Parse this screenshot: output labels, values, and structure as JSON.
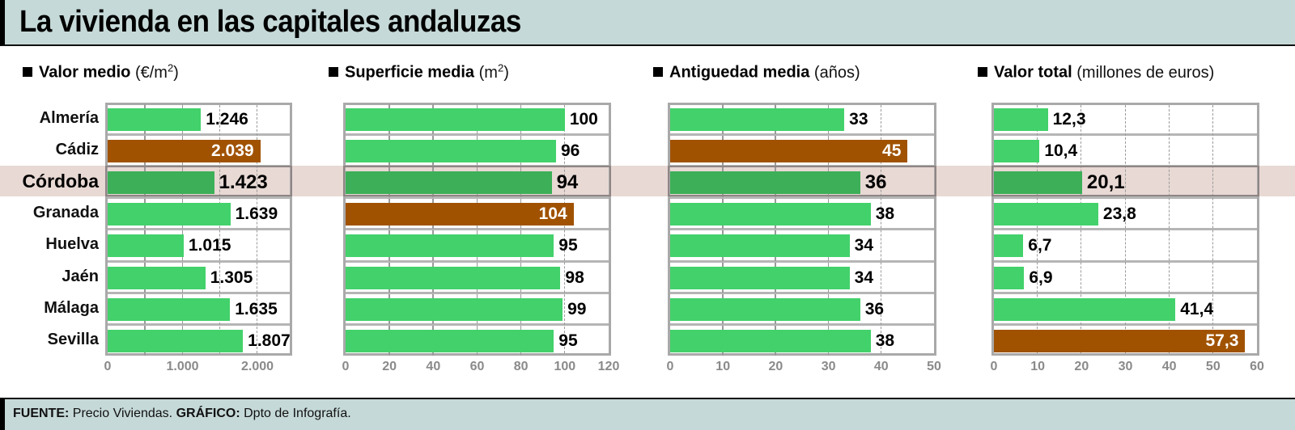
{
  "title": "La vivienda en las capitales andaluzas",
  "footer": {
    "source_label": "FUENTE:",
    "source_value": "Precio Viviendas.",
    "graphic_label": "GRÁFICO:",
    "graphic_value": "Dpto de Infografía."
  },
  "cities": [
    "Almería",
    "Cádiz",
    "Córdoba",
    "Granada",
    "Huelva",
    "Jaén",
    "Málaga",
    "Sevilla"
  ],
  "highlight_city": "Córdoba",
  "colors": {
    "bar": "#43d16b",
    "bar_highlight": "#3caf58",
    "bar_max": "#a05200",
    "highlight_band": "#e8d9d4",
    "title_band": "#c5d9d8"
  },
  "panels": [
    {
      "title_bold": "Valor medio",
      "unit_pre": "(€/m",
      "unit_sup": "2",
      "unit_post": ")",
      "labels": [
        "1.246",
        "2.039",
        "1.423",
        "1.639",
        "1.015",
        "1.305",
        "1.635",
        "1.807"
      ],
      "ticks": [
        "0",
        "1.000",
        "2.000"
      ]
    },
    {
      "title_bold": "Superficie media",
      "unit_pre": "(m",
      "unit_sup": "2",
      "unit_post": ")",
      "labels": [
        "100",
        "96",
        "94",
        "104",
        "95",
        "98",
        "99",
        "95"
      ],
      "ticks": [
        "0",
        "20",
        "40",
        "60",
        "80",
        "100",
        "120"
      ]
    },
    {
      "title_bold": "Antiguedad media",
      "unit_pre": "(años)",
      "unit_sup": "",
      "unit_post": "",
      "labels": [
        "33",
        "45",
        "36",
        "38",
        "34",
        "34",
        "36",
        "38"
      ],
      "ticks": [
        "0",
        "10",
        "20",
        "30",
        "40",
        "50"
      ]
    },
    {
      "title_bold": "Valor total",
      "unit_pre": "(millones de euros)",
      "unit_sup": "",
      "unit_post": "",
      "labels": [
        "12,3",
        "10,4",
        "20,1",
        "23,8",
        "6,7",
        "6,9",
        "41,4",
        "57,3"
      ],
      "ticks": [
        "0",
        "10",
        "20",
        "30",
        "40",
        "50",
        "60"
      ]
    }
  ],
  "chart_data": [
    {
      "type": "bar",
      "orientation": "horizontal",
      "title": "Valor medio (€/m2)",
      "categories": [
        "Almería",
        "Cádiz",
        "Córdoba",
        "Granada",
        "Huelva",
        "Jaén",
        "Málaga",
        "Sevilla"
      ],
      "values": [
        1246,
        2039,
        1423,
        1639,
        1015,
        1305,
        1635,
        1807
      ],
      "xlabel": "€/m2",
      "xlim": [
        0,
        2400
      ],
      "xticks": [
        0,
        1000,
        2000
      ],
      "highlight": "Córdoba",
      "max_category": "Cádiz",
      "grid": true
    },
    {
      "type": "bar",
      "orientation": "horizontal",
      "title": "Superficie media (m2)",
      "categories": [
        "Almería",
        "Cádiz",
        "Córdoba",
        "Granada",
        "Huelva",
        "Jaén",
        "Málaga",
        "Sevilla"
      ],
      "values": [
        100,
        96,
        94,
        104,
        95,
        98,
        99,
        95
      ],
      "xlabel": "m2",
      "xlim": [
        0,
        120
      ],
      "xticks": [
        0,
        20,
        40,
        60,
        80,
        100,
        120
      ],
      "highlight": "Córdoba",
      "max_category": "Granada",
      "grid": true
    },
    {
      "type": "bar",
      "orientation": "horizontal",
      "title": "Antiguedad media (años)",
      "categories": [
        "Almería",
        "Cádiz",
        "Córdoba",
        "Granada",
        "Huelva",
        "Jaén",
        "Málaga",
        "Sevilla"
      ],
      "values": [
        33,
        45,
        36,
        38,
        34,
        34,
        36,
        38
      ],
      "xlabel": "años",
      "xlim": [
        0,
        50
      ],
      "xticks": [
        0,
        10,
        20,
        30,
        40,
        50
      ],
      "highlight": "Córdoba",
      "max_category": "Cádiz",
      "grid": true
    },
    {
      "type": "bar",
      "orientation": "horizontal",
      "title": "Valor total (millones de euros)",
      "categories": [
        "Almería",
        "Cádiz",
        "Córdoba",
        "Granada",
        "Huelva",
        "Jaén",
        "Málaga",
        "Sevilla"
      ],
      "values": [
        12.3,
        10.4,
        20.1,
        23.8,
        6.7,
        6.9,
        41.4,
        57.3
      ],
      "xlabel": "millones de euros",
      "xlim": [
        0,
        60
      ],
      "xticks": [
        0,
        10,
        20,
        30,
        40,
        50,
        60
      ],
      "highlight": "Córdoba",
      "max_category": "Sevilla",
      "grid": true
    }
  ]
}
